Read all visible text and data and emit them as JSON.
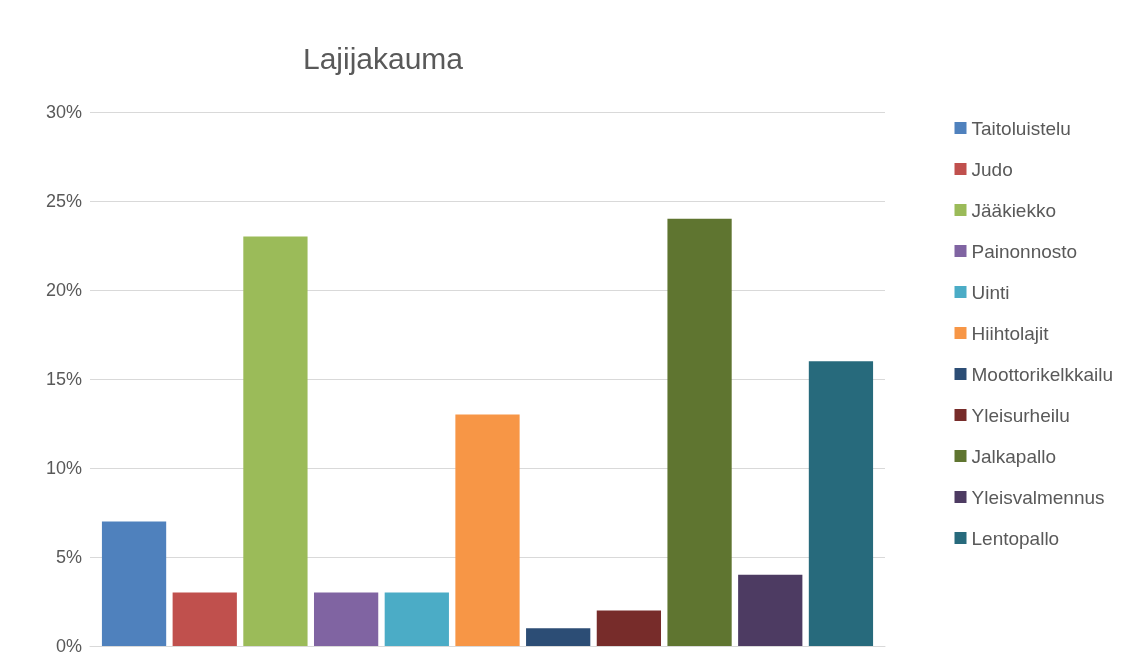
{
  "chart_data": {
    "type": "bar",
    "title": "Lajijakauma",
    "categories": [
      null
    ],
    "series": [
      {
        "name": "Taitoluistelu",
        "color": "#4f81bd",
        "values": [
          7
        ]
      },
      {
        "name": "Judo",
        "color": "#c0504d",
        "values": [
          3
        ]
      },
      {
        "name": "Jääkiekko",
        "color": "#9bbb59",
        "values": [
          23
        ]
      },
      {
        "name": "Painonnosto",
        "color": "#8064a2",
        "values": [
          3
        ]
      },
      {
        "name": "Uinti",
        "color": "#4bacc6",
        "values": [
          3
        ]
      },
      {
        "name": "Hiihtolajit",
        "color": "#f79646",
        "values": [
          13
        ]
      },
      {
        "name": "Moottorikelkkailu",
        "color": "#2c4d75",
        "values": [
          1
        ]
      },
      {
        "name": "Yleisurheilu",
        "color": "#772c2a",
        "values": [
          2
        ]
      },
      {
        "name": "Jalkapallo",
        "color": "#5f7530",
        "values": [
          24
        ]
      },
      {
        "name": "Yleisvalmennus",
        "color": "#4d3b62",
        "values": [
          4
        ]
      },
      {
        "name": "Lentopallo",
        "color": "#276a7c",
        "values": [
          16
        ]
      }
    ],
    "ylim": [
      0,
      30
    ],
    "yticks": [
      {
        "value": 0,
        "label": "0%"
      },
      {
        "value": 5,
        "label": "5%"
      },
      {
        "value": 10,
        "label": "10%"
      },
      {
        "value": 15,
        "label": "15%"
      },
      {
        "value": 20,
        "label": "20%"
      },
      {
        "value": 25,
        "label": "25%"
      },
      {
        "value": 30,
        "label": "30%"
      }
    ],
    "grid": "y",
    "legend": "right"
  }
}
